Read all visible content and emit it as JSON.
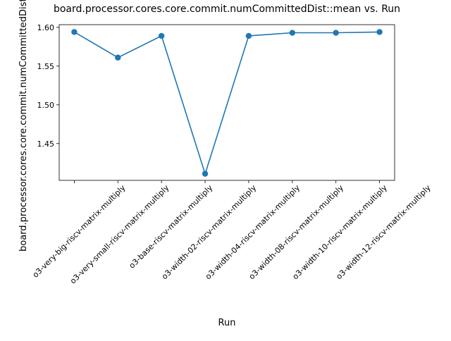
{
  "chart_data": {
    "type": "line",
    "title": "board.processor.cores.core.commit.numCommittedDist::mean vs. Run",
    "xlabel": "Run",
    "ylabel": "board.processor.cores.core.commit.numCommittedDist::mean",
    "categories": [
      "o3-very-big-riscv-matrix-multiply",
      "o3-very-small-riscv-matrix-multiply",
      "o3-base-riscv-matrix-multiply",
      "o3-width-02-riscv-matrix-multiply",
      "o3-width-04-riscv-matrix-multiply",
      "o3-width-08-riscv-matrix-multiply",
      "o3-width-10-riscv-matrix-multiply",
      "o3-width-12-riscv-matrix-multiply"
    ],
    "series": [
      {
        "values": [
          1.594,
          1.561,
          1.589,
          1.411,
          1.589,
          1.593,
          1.593,
          1.594
        ]
      }
    ],
    "ylim": [
      1.4025,
      1.6035
    ],
    "yticks": [
      1.45,
      1.5,
      1.55,
      1.6
    ],
    "ytick_labels": [
      "1.45",
      "1.50",
      "1.55",
      "1.60"
    ],
    "grid": false,
    "legend": "none",
    "color": "#1f77b4"
  }
}
